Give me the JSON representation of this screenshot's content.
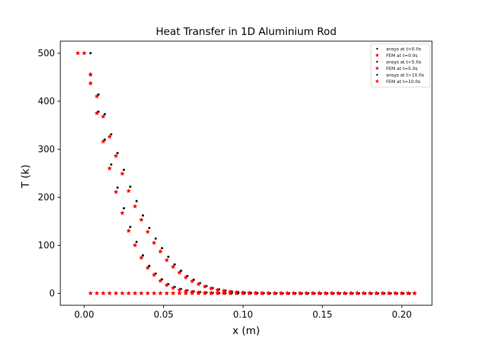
{
  "chart_data": {
    "type": "scatter",
    "title": "Heat Transfer in 1D Aluminium Rod",
    "xlabel": "x (m)",
    "ylabel": "T (k)",
    "xlim": [
      -0.015,
      0.219
    ],
    "ylim": [
      -25,
      525
    ],
    "xticks": [
      "0.00",
      "0.05",
      "0.10",
      "0.15",
      "0.20"
    ],
    "xtick_values": [
      0.0,
      0.05,
      0.1,
      0.15,
      0.2
    ],
    "yticks": [
      "0",
      "100",
      "200",
      "300",
      "400",
      "500"
    ],
    "ytick_values": [
      0,
      100,
      200,
      300,
      400,
      500
    ],
    "grid": false,
    "legend_position": "top-right",
    "series": [
      {
        "name": "ansys at t=0.0s",
        "marker": "dot",
        "color": "#000000",
        "points": [
          [
            0.004,
            500
          ],
          [
            0.008,
            0
          ],
          [
            0.012,
            0
          ],
          [
            0.016,
            0
          ],
          [
            0.02,
            0
          ],
          [
            0.024,
            0
          ],
          [
            0.028,
            0
          ],
          [
            0.032,
            0
          ],
          [
            0.036,
            0
          ],
          [
            0.04,
            0
          ],
          [
            0.044,
            0
          ],
          [
            0.048,
            0
          ],
          [
            0.052,
            0
          ],
          [
            0.056,
            0
          ],
          [
            0.06,
            0
          ],
          [
            0.064,
            0
          ],
          [
            0.068,
            0
          ],
          [
            0.072,
            0
          ],
          [
            0.076,
            0
          ],
          [
            0.08,
            0
          ],
          [
            0.084,
            0
          ],
          [
            0.088,
            0
          ],
          [
            0.092,
            0
          ],
          [
            0.096,
            0
          ],
          [
            0.1,
            0
          ],
          [
            0.104,
            0
          ],
          [
            0.108,
            0
          ],
          [
            0.112,
            0
          ],
          [
            0.116,
            0
          ],
          [
            0.12,
            0
          ],
          [
            0.124,
            0
          ],
          [
            0.128,
            0
          ],
          [
            0.132,
            0
          ],
          [
            0.136,
            0
          ],
          [
            0.14,
            0
          ],
          [
            0.144,
            0
          ],
          [
            0.148,
            0
          ],
          [
            0.152,
            0
          ],
          [
            0.156,
            0
          ],
          [
            0.16,
            0
          ],
          [
            0.164,
            0
          ],
          [
            0.168,
            0
          ],
          [
            0.172,
            0
          ],
          [
            0.176,
            0
          ],
          [
            0.18,
            0
          ],
          [
            0.184,
            0
          ],
          [
            0.188,
            0
          ],
          [
            0.192,
            0
          ],
          [
            0.196,
            0
          ],
          [
            0.2,
            0
          ],
          [
            0.204,
            0
          ],
          [
            0.208,
            0
          ]
        ]
      },
      {
        "name": "FEM at t=0.0s",
        "marker": "star",
        "color": "#ff0000",
        "points": [
          [
            -0.004,
            500
          ],
          [
            0.0,
            500
          ],
          [
            0.004,
            0
          ],
          [
            0.008,
            0
          ],
          [
            0.012,
            0
          ],
          [
            0.016,
            0
          ],
          [
            0.02,
            0
          ],
          [
            0.024,
            0
          ],
          [
            0.028,
            0
          ],
          [
            0.032,
            0
          ],
          [
            0.036,
            0
          ],
          [
            0.04,
            0
          ],
          [
            0.044,
            0
          ],
          [
            0.048,
            0
          ],
          [
            0.052,
            0
          ],
          [
            0.056,
            0
          ],
          [
            0.06,
            0
          ],
          [
            0.064,
            0
          ],
          [
            0.068,
            0
          ],
          [
            0.072,
            0
          ],
          [
            0.076,
            0
          ],
          [
            0.08,
            0
          ],
          [
            0.084,
            0
          ],
          [
            0.088,
            0
          ],
          [
            0.092,
            0
          ],
          [
            0.096,
            0
          ],
          [
            0.1,
            0
          ],
          [
            0.104,
            0
          ],
          [
            0.108,
            0
          ],
          [
            0.112,
            0
          ],
          [
            0.116,
            0
          ],
          [
            0.12,
            0
          ],
          [
            0.124,
            0
          ],
          [
            0.128,
            0
          ],
          [
            0.132,
            0
          ],
          [
            0.136,
            0
          ],
          [
            0.14,
            0
          ],
          [
            0.144,
            0
          ],
          [
            0.148,
            0
          ],
          [
            0.152,
            0
          ],
          [
            0.156,
            0
          ],
          [
            0.16,
            0
          ],
          [
            0.164,
            0
          ],
          [
            0.168,
            0
          ],
          [
            0.172,
            0
          ],
          [
            0.176,
            0
          ],
          [
            0.18,
            0
          ],
          [
            0.184,
            0
          ],
          [
            0.188,
            0
          ],
          [
            0.192,
            0
          ],
          [
            0.196,
            0
          ],
          [
            0.2,
            0
          ],
          [
            0.204,
            0
          ],
          [
            0.208,
            0
          ]
        ]
      },
      {
        "name": "ansys at t=5.0s",
        "marker": "dot",
        "color": "#000000",
        "points": [
          [
            0.004,
            438
          ],
          [
            0.009,
            378
          ],
          [
            0.013,
            320
          ],
          [
            0.017,
            268
          ],
          [
            0.021,
            220
          ],
          [
            0.025,
            177
          ],
          [
            0.029,
            138
          ],
          [
            0.033,
            107
          ],
          [
            0.037,
            79
          ],
          [
            0.041,
            57
          ],
          [
            0.045,
            41
          ],
          [
            0.049,
            29
          ],
          [
            0.053,
            19
          ],
          [
            0.057,
            13
          ],
          [
            0.061,
            9
          ],
          [
            0.065,
            6
          ],
          [
            0.069,
            4
          ],
          [
            0.073,
            2.5
          ],
          [
            0.077,
            1.6
          ],
          [
            0.081,
            1
          ],
          [
            0.085,
            0.6
          ],
          [
            0.089,
            0.3
          ],
          [
            0.093,
            0.2
          ],
          [
            0.097,
            0.1
          ],
          [
            0.101,
            0
          ],
          [
            0.105,
            0
          ],
          [
            0.109,
            0
          ],
          [
            0.113,
            0
          ],
          [
            0.117,
            0
          ],
          [
            0.121,
            0
          ],
          [
            0.125,
            0
          ],
          [
            0.129,
            0
          ],
          [
            0.133,
            0
          ],
          [
            0.137,
            0
          ],
          [
            0.141,
            0
          ],
          [
            0.145,
            0
          ],
          [
            0.149,
            0
          ],
          [
            0.153,
            0
          ],
          [
            0.157,
            0
          ],
          [
            0.161,
            0
          ],
          [
            0.165,
            0
          ],
          [
            0.169,
            0
          ],
          [
            0.173,
            0
          ],
          [
            0.177,
            0
          ],
          [
            0.181,
            0
          ],
          [
            0.185,
            0
          ],
          [
            0.189,
            0
          ],
          [
            0.193,
            0
          ],
          [
            0.197,
            0
          ],
          [
            0.201,
            0
          ],
          [
            0.205,
            0
          ]
        ]
      },
      {
        "name": "FEM at t=5.0s",
        "marker": "star",
        "color": "#ff0000",
        "points": [
          [
            0.004,
            437
          ],
          [
            0.008,
            375
          ],
          [
            0.012,
            316
          ],
          [
            0.016,
            260
          ],
          [
            0.02,
            211
          ],
          [
            0.024,
            167
          ],
          [
            0.028,
            130
          ],
          [
            0.032,
            100
          ],
          [
            0.036,
            74
          ],
          [
            0.04,
            53
          ],
          [
            0.044,
            38
          ],
          [
            0.048,
            26
          ],
          [
            0.052,
            17
          ],
          [
            0.056,
            11
          ],
          [
            0.06,
            7
          ],
          [
            0.064,
            4.5
          ],
          [
            0.068,
            2.8
          ],
          [
            0.072,
            1.7
          ],
          [
            0.076,
            1
          ],
          [
            0.08,
            0.6
          ],
          [
            0.084,
            0.3
          ],
          [
            0.088,
            0.2
          ],
          [
            0.092,
            0.1
          ],
          [
            0.096,
            0
          ],
          [
            0.1,
            0
          ],
          [
            0.104,
            0
          ],
          [
            0.108,
            0
          ],
          [
            0.112,
            0
          ],
          [
            0.116,
            0
          ],
          [
            0.12,
            0
          ],
          [
            0.124,
            0
          ],
          [
            0.128,
            0
          ],
          [
            0.132,
            0
          ],
          [
            0.136,
            0
          ],
          [
            0.14,
            0
          ],
          [
            0.144,
            0
          ],
          [
            0.148,
            0
          ],
          [
            0.152,
            0
          ],
          [
            0.156,
            0
          ],
          [
            0.16,
            0
          ],
          [
            0.164,
            0
          ],
          [
            0.168,
            0
          ],
          [
            0.172,
            0
          ],
          [
            0.176,
            0
          ],
          [
            0.18,
            0
          ],
          [
            0.184,
            0
          ],
          [
            0.188,
            0
          ],
          [
            0.192,
            0
          ],
          [
            0.196,
            0
          ],
          [
            0.2,
            0
          ],
          [
            0.204,
            0
          ],
          [
            0.208,
            0
          ]
        ]
      },
      {
        "name": "ansys at t=10.0s",
        "marker": "dot",
        "color": "#000000",
        "points": [
          [
            0.004,
            457
          ],
          [
            0.009,
            414
          ],
          [
            0.013,
            373
          ],
          [
            0.017,
            331
          ],
          [
            0.021,
            292
          ],
          [
            0.025,
            257
          ],
          [
            0.029,
            222
          ],
          [
            0.033,
            192
          ],
          [
            0.037,
            162
          ],
          [
            0.041,
            136
          ],
          [
            0.045,
            114
          ],
          [
            0.049,
            94
          ],
          [
            0.053,
            76
          ],
          [
            0.057,
            60
          ],
          [
            0.061,
            47
          ],
          [
            0.065,
            36
          ],
          [
            0.069,
            28
          ],
          [
            0.073,
            21
          ],
          [
            0.077,
            15
          ],
          [
            0.081,
            11
          ],
          [
            0.085,
            8
          ],
          [
            0.089,
            5.5
          ],
          [
            0.093,
            3.8
          ],
          [
            0.097,
            2.6
          ],
          [
            0.101,
            1.7
          ],
          [
            0.105,
            1.1
          ],
          [
            0.109,
            0.7
          ],
          [
            0.113,
            0.5
          ],
          [
            0.117,
            0.3
          ],
          [
            0.121,
            0.2
          ],
          [
            0.125,
            0.1
          ],
          [
            0.129,
            0
          ],
          [
            0.133,
            0
          ],
          [
            0.137,
            0
          ],
          [
            0.141,
            0
          ],
          [
            0.145,
            0
          ],
          [
            0.149,
            0
          ],
          [
            0.153,
            0
          ],
          [
            0.157,
            0
          ],
          [
            0.161,
            0
          ],
          [
            0.165,
            0
          ],
          [
            0.169,
            0
          ],
          [
            0.173,
            0
          ],
          [
            0.177,
            0
          ],
          [
            0.181,
            0
          ],
          [
            0.185,
            0
          ],
          [
            0.189,
            0
          ],
          [
            0.193,
            0
          ],
          [
            0.197,
            0
          ],
          [
            0.201,
            0
          ],
          [
            0.205,
            0
          ]
        ]
      },
      {
        "name": "FEM at t=10.0s",
        "marker": "star",
        "color": "#ff0000",
        "points": [
          [
            0.004,
            455
          ],
          [
            0.008,
            410
          ],
          [
            0.012,
            368
          ],
          [
            0.016,
            326
          ],
          [
            0.02,
            286
          ],
          [
            0.024,
            249
          ],
          [
            0.028,
            213
          ],
          [
            0.032,
            181
          ],
          [
            0.036,
            153
          ],
          [
            0.04,
            128
          ],
          [
            0.044,
            105
          ],
          [
            0.048,
            87
          ],
          [
            0.052,
            69
          ],
          [
            0.056,
            55
          ],
          [
            0.06,
            43
          ],
          [
            0.064,
            33
          ],
          [
            0.068,
            25
          ],
          [
            0.072,
            19
          ],
          [
            0.076,
            14
          ],
          [
            0.08,
            10
          ],
          [
            0.084,
            7
          ],
          [
            0.088,
            5
          ],
          [
            0.092,
            3.4
          ],
          [
            0.096,
            2.3
          ],
          [
            0.1,
            1.5
          ],
          [
            0.104,
            1
          ],
          [
            0.108,
            0.6
          ],
          [
            0.112,
            0.4
          ],
          [
            0.116,
            0.2
          ],
          [
            0.12,
            0.1
          ],
          [
            0.124,
            0
          ],
          [
            0.128,
            0
          ],
          [
            0.132,
            0
          ],
          [
            0.136,
            0
          ],
          [
            0.14,
            0
          ],
          [
            0.144,
            0
          ],
          [
            0.148,
            0
          ],
          [
            0.152,
            0
          ],
          [
            0.156,
            0
          ],
          [
            0.16,
            0
          ],
          [
            0.164,
            0
          ],
          [
            0.168,
            0
          ],
          [
            0.172,
            0
          ],
          [
            0.176,
            0
          ],
          [
            0.18,
            0
          ],
          [
            0.184,
            0
          ],
          [
            0.188,
            0
          ],
          [
            0.192,
            0
          ],
          [
            0.196,
            0
          ],
          [
            0.2,
            0
          ],
          [
            0.204,
            0
          ],
          [
            0.208,
            0
          ]
        ]
      }
    ]
  }
}
